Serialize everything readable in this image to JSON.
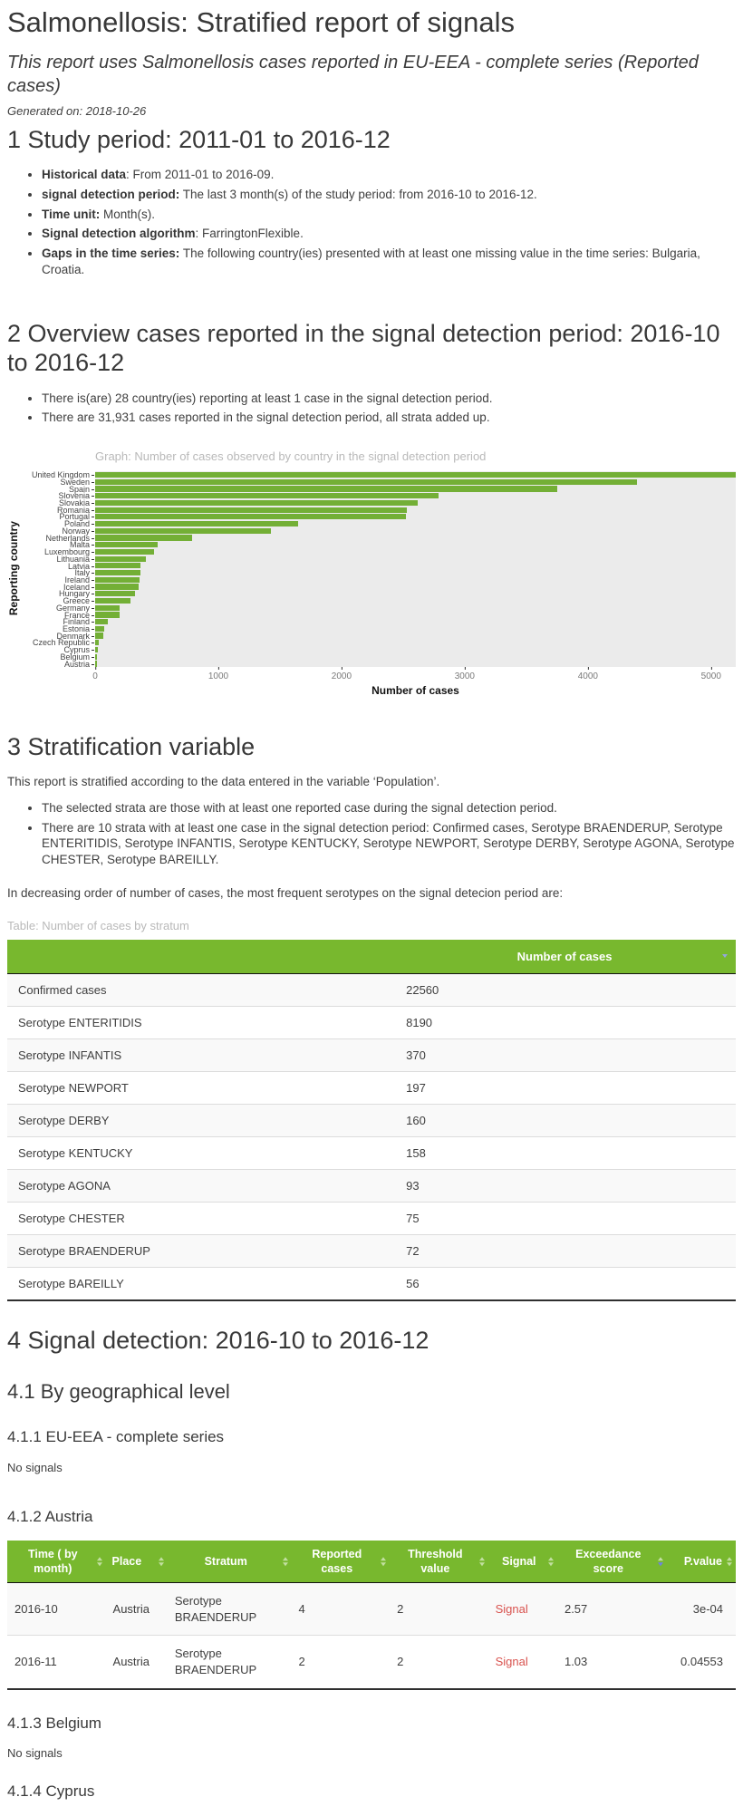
{
  "report": {
    "title": "Salmonellosis: Stratified report of signals",
    "subtitle": "This report uses Salmonellosis cases reported in EU-EEA - complete series (Reported cases)",
    "generated_on": "Generated on: 2018-10-26"
  },
  "colors": {
    "table_header_green": "#78b82e",
    "bar_green": "#73af36",
    "signal_red": "#d9534f",
    "active_sort_blue": "#6d83e3",
    "plot_background": "#ebebeb",
    "muted_caption_gray": "#b9b9b9"
  },
  "section1": {
    "heading": "1 Study period: 2011-01 to 2016-12",
    "bullets": [
      {
        "lead": "Historical data",
        "text": ": From 2011-01 to 2016-09."
      },
      {
        "lead": "signal detection period:",
        "text": " The last 3 month(s) of the study period: from 2016-10 to 2016-12."
      },
      {
        "lead": "Time unit:",
        "text": " Month(s)."
      },
      {
        "lead": "Signal detection algorithm",
        "text": ": FarringtonFlexible."
      },
      {
        "lead": "Gaps in the time series:",
        "text": " The following country(ies) presented with at least one missing value in the time series: Bulgaria, Croatia."
      }
    ]
  },
  "section2": {
    "heading": "2 Overview cases reported in the signal detection period: 2016-10 to 2016-12",
    "bullets": [
      {
        "lead": "",
        "text": "There is(are) 28 country(ies) reporting at least 1 case in the signal detection period."
      },
      {
        "lead": "",
        "text": "There are 31,931 cases reported in the signal detection period, all strata added up."
      }
    ]
  },
  "chart_data": {
    "type": "bar",
    "orientation": "horizontal",
    "title": "Graph: Number of cases observed by country in the signal detection period",
    "xlabel": "Number of cases",
    "ylabel": "Reporting country",
    "xlim": [
      0,
      5200
    ],
    "xticks": [
      0,
      1000,
      2000,
      3000,
      4000,
      5000
    ],
    "grid": false,
    "legend": false,
    "categories": [
      "United Kingdom",
      "Sweden",
      "Spain",
      "Slovenia",
      "Slovakia",
      "Romania",
      "Portugal",
      "Poland",
      "Norway",
      "Netherlands",
      "Malta",
      "Luxembourg",
      "Lithuania",
      "Latvia",
      "Italy",
      "Ireland",
      "Iceland",
      "Hungary",
      "Greece",
      "Germany",
      "France",
      "Finland",
      "Estonia",
      "Denmark",
      "Czech Republic",
      "Cyprus",
      "Belgium",
      "Austria"
    ],
    "values": [
      5200,
      4400,
      3750,
      2790,
      2620,
      2530,
      2520,
      1650,
      1430,
      790,
      505,
      480,
      410,
      370,
      365,
      360,
      350,
      320,
      290,
      200,
      195,
      105,
      75,
      65,
      30,
      22,
      15,
      12
    ]
  },
  "section3": {
    "heading": "3 Stratification variable",
    "paragraph1": "This report is stratified according to the data entered in the variable ‘Population’.",
    "bullets": [
      {
        "lead": "",
        "text": "The selected strata are those with at least one reported case during the signal detection period."
      },
      {
        "lead": "",
        "text": "There are 10 strata with at least one case in the signal detection period: Confirmed cases, Serotype BRAENDERUP, Serotype ENTERITIDIS, Serotype INFANTIS, Serotype KENTUCKY, Serotype NEWPORT, Serotype DERBY, Serotype AGONA, Serotype CHESTER, Serotype BAREILLY."
      }
    ],
    "paragraph2": "In decreasing order of number of cases, the most frequent serotypes on the signal detecion period are:",
    "table_caption": "Table: Number of cases by stratum",
    "table": {
      "stratum_header": "",
      "value_header": "Number of cases",
      "sort": "descending",
      "rows": [
        {
          "stratum": "Confirmed cases",
          "cases": "22560"
        },
        {
          "stratum": "Serotype ENTERITIDIS",
          "cases": "8190"
        },
        {
          "stratum": "Serotype INFANTIS",
          "cases": "370"
        },
        {
          "stratum": "Serotype NEWPORT",
          "cases": "197"
        },
        {
          "stratum": "Serotype DERBY",
          "cases": "160"
        },
        {
          "stratum": "Serotype KENTUCKY",
          "cases": "158"
        },
        {
          "stratum": "Serotype AGONA",
          "cases": "93"
        },
        {
          "stratum": "Serotype CHESTER",
          "cases": "75"
        },
        {
          "stratum": "Serotype BRAENDERUP",
          "cases": "72"
        },
        {
          "stratum": "Serotype BAREILLY",
          "cases": "56"
        }
      ]
    }
  },
  "section4": {
    "heading": "4 Signal detection: 2016-10 to 2016-12",
    "sub_heading": "4.1 By geographical level",
    "sub1": {
      "heading": "4.1.1 EU-EEA - complete series",
      "body": "No signals"
    },
    "sub2": {
      "heading": "4.1.2 Austria",
      "table": {
        "headers": [
          {
            "label": "Time ( by month)"
          },
          {
            "label": "Place"
          },
          {
            "label": "Stratum"
          },
          {
            "label": "Reported cases"
          },
          {
            "label": "Threshold value"
          },
          {
            "label": "Signal"
          },
          {
            "label": "Exceedance score",
            "sorted": true
          },
          {
            "label": "P.value"
          }
        ],
        "rows": [
          [
            "2016-10",
            "Austria",
            "Serotype BRAENDERUP",
            "4",
            "2",
            "Signal",
            "2.57",
            "3e-04"
          ],
          [
            "2016-11",
            "Austria",
            "Serotype BRAENDERUP",
            "2",
            "2",
            "Signal",
            "1.03",
            "0.04553"
          ]
        ]
      }
    },
    "sub3": {
      "heading": "4.1.3 Belgium",
      "body": "No signals"
    },
    "sub4": {
      "heading": "4.1.4 Cyprus"
    }
  }
}
